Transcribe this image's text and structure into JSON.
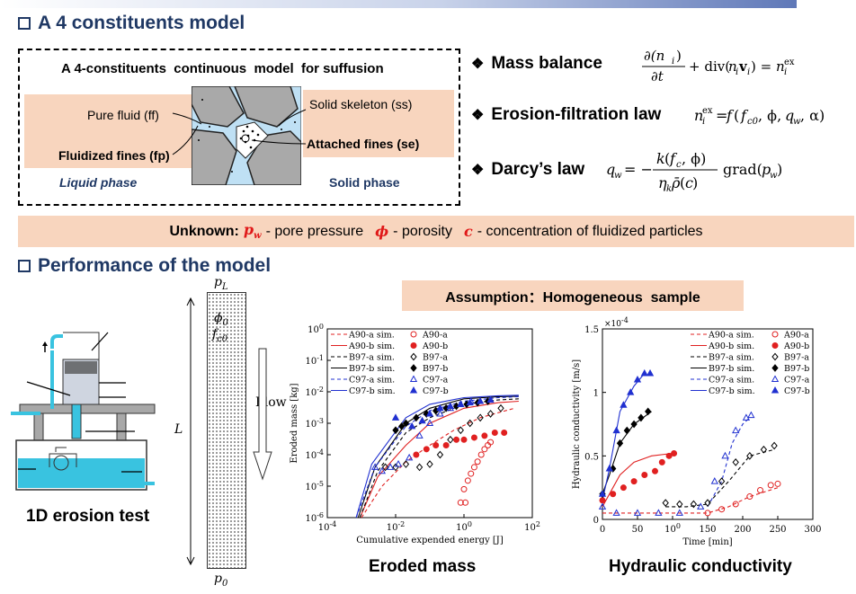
{
  "section1": {
    "title": "A 4 constituents model"
  },
  "model": {
    "heading": "A 4-constituents  continuous  model  for suffusion",
    "pure_fluid": "Pure fluid (ff)",
    "fluidized_fines": "Fluidized fines (fp)",
    "liquid_phase": "Liquid phase",
    "solid_skeleton": "Solid skeleton (ss)",
    "attached_fines": "Attached fines (se)",
    "solid_phase": "Solid phase"
  },
  "equations": [
    {
      "label": "Mass balance"
    },
    {
      "label": "Erosion-filtration law"
    },
    {
      "label": "Darcy’s law"
    }
  ],
  "unknown": {
    "label": "Unknown:",
    "pw_sym": "pw",
    "pw_text": "- pore pressure",
    "phi_sym": "ϕ",
    "phi_text": "- porosity",
    "c_sym": "c",
    "c_text": "- concentration of fluidized particles"
  },
  "section2": {
    "title": "Performance of the model"
  },
  "column": {
    "top": "pL",
    "bottom": "p0",
    "phi": "ϕ0",
    "fc": "fc0",
    "flow": "Flow",
    "length": "L"
  },
  "assumption": "Assumption：Homogeneous  sample",
  "captions": {
    "test": "1D erosion test",
    "eroded": "Eroded mass",
    "hydraulic": "Hydraulic conductivity"
  },
  "chart_data": [
    {
      "type": "scatter",
      "title": "Eroded mass",
      "xlabel": "Cumulative expended energy [J]",
      "ylabel": "Eroded mass [kg]",
      "xscale": "log",
      "yscale": "log",
      "xlim": [
        0.0001,
        100
      ],
      "ylim": [
        1e-06,
        1
      ],
      "xticks": [
        "10-4",
        "10-2",
        "100",
        "102"
      ],
      "yticks": [
        "100",
        "10-1",
        "10-2",
        "10-3",
        "10-4",
        "10-5",
        "10-6"
      ],
      "legend": "top-left",
      "series": [
        {
          "name": "A90-a sim.",
          "color": "#e02020",
          "style": "dashed",
          "points": [
            [
              0.001,
              1e-06
            ],
            [
              0.004,
              1e-05
            ],
            [
              0.02,
              6e-05
            ],
            [
              0.1,
              0.0002
            ],
            [
              0.5,
              0.0006
            ],
            [
              3,
              0.0015
            ],
            [
              30,
              0.003
            ]
          ]
        },
        {
          "name": "A90-b sim.",
          "color": "#e02020",
          "style": "solid",
          "points": [
            [
              0.0009,
              1e-06
            ],
            [
              0.003,
              2e-05
            ],
            [
              0.02,
              0.0002
            ],
            [
              0.1,
              0.001
            ],
            [
              1,
              0.003
            ],
            [
              10,
              0.0045
            ],
            [
              40,
              0.005
            ]
          ]
        },
        {
          "name": "B97-a sim.",
          "color": "#000000",
          "style": "dashed",
          "points": [
            [
              0.0009,
              1e-06
            ],
            [
              0.003,
              3e-05
            ],
            [
              0.02,
              0.0005
            ],
            [
              0.1,
              0.0015
            ],
            [
              1,
              0.004
            ],
            [
              10,
              0.0055
            ],
            [
              40,
              0.006
            ]
          ]
        },
        {
          "name": "B97-b sim.",
          "color": "#000000",
          "style": "solid",
          "points": [
            [
              0.0008,
              1e-06
            ],
            [
              0.0025,
              4e-05
            ],
            [
              0.02,
              0.001
            ],
            [
              0.1,
              0.003
            ],
            [
              1,
              0.006
            ],
            [
              10,
              0.007
            ],
            [
              40,
              0.0072
            ]
          ]
        },
        {
          "name": "C97-a sim.",
          "color": "#2030d0",
          "style": "dashed",
          "points": [
            [
              0.0007,
              1e-06
            ],
            [
              0.0025,
              4e-05
            ],
            [
              0.02,
              0.0008
            ],
            [
              0.1,
              0.0025
            ],
            [
              1,
              0.005
            ],
            [
              10,
              0.0065
            ],
            [
              40,
              0.007
            ]
          ]
        },
        {
          "name": "C97-b sim.",
          "color": "#2030d0",
          "style": "solid",
          "points": [
            [
              0.0007,
              1e-06
            ],
            [
              0.002,
              5e-05
            ],
            [
              0.02,
              0.0015
            ],
            [
              0.1,
              0.004
            ],
            [
              1,
              0.0065
            ],
            [
              10,
              0.0075
            ],
            [
              40,
              0.0078
            ]
          ]
        },
        {
          "name": "A90-a",
          "color": "#e02020",
          "marker": "circle-open",
          "points": [
            [
              0.8,
              3e-06
            ],
            [
              1,
              8e-06
            ],
            [
              1.3,
              1.5e-05
            ],
            [
              1.6,
              2.5e-05
            ],
            [
              2,
              4e-05
            ],
            [
              2.5,
              6e-05
            ],
            [
              3.2,
              0.0001
            ],
            [
              4,
              0.00015
            ],
            [
              5,
              0.0002
            ],
            [
              6,
              0.00025
            ],
            [
              1.1,
              3e-06
            ]
          ]
        },
        {
          "name": "A90-b",
          "color": "#e02020",
          "marker": "circle-filled",
          "points": [
            [
              0.04,
              0.0001
            ],
            [
              0.08,
              0.00015
            ],
            [
              0.15,
              0.0002
            ],
            [
              0.3,
              0.0002
            ],
            [
              0.6,
              0.0003
            ],
            [
              1,
              0.0003
            ],
            [
              2,
              0.00035
            ],
            [
              4,
              0.0004
            ],
            [
              8,
              0.0005
            ],
            [
              15,
              0.0005
            ]
          ]
        },
        {
          "name": "B97-a",
          "color": "#000000",
          "marker": "diamond-open",
          "points": [
            [
              0.005,
              4e-05
            ],
            [
              0.01,
              4e-05
            ],
            [
              0.02,
              5e-05
            ],
            [
              0.05,
              4e-05
            ],
            [
              0.1,
              5e-05
            ],
            [
              0.2,
              0.0001
            ],
            [
              0.4,
              0.0003
            ],
            [
              0.8,
              0.0006
            ],
            [
              1.5,
              0.001
            ],
            [
              3,
              0.0015
            ],
            [
              6,
              0.002
            ],
            [
              12,
              0.003
            ]
          ]
        },
        {
          "name": "B97-b",
          "color": "#000000",
          "marker": "diamond-filled",
          "points": [
            [
              0.01,
              0.0006
            ],
            [
              0.015,
              0.0008
            ],
            [
              0.02,
              0.001
            ],
            [
              0.04,
              0.0015
            ],
            [
              0.08,
              0.002
            ],
            [
              0.15,
              0.0025
            ],
            [
              0.3,
              0.003
            ],
            [
              0.6,
              0.0035
            ],
            [
              1.2,
              0.004
            ],
            [
              2.5,
              0.0045
            ],
            [
              5,
              0.005
            ]
          ]
        },
        {
          "name": "C97-a",
          "color": "#2030d0",
          "marker": "triangle-open",
          "points": [
            [
              0.0025,
              4e-05
            ],
            [
              0.004,
              3e-05
            ],
            [
              0.007,
              4e-05
            ],
            [
              0.012,
              5e-05
            ],
            [
              0.025,
              8e-05
            ],
            [
              0.05,
              0.0004
            ],
            [
              0.1,
              0.001
            ],
            [
              0.2,
              0.002
            ],
            [
              0.4,
              0.003
            ],
            [
              0.8,
              0.004
            ],
            [
              1.6,
              0.005
            ]
          ]
        },
        {
          "name": "C97-b",
          "color": "#2030d0",
          "marker": "triangle-filled",
          "points": [
            [
              0.01,
              0.0015
            ],
            [
              0.03,
              0.0008
            ],
            [
              0.06,
              0.0012
            ],
            [
              0.1,
              0.002
            ],
            [
              0.2,
              0.003
            ],
            [
              0.4,
              0.0035
            ],
            [
              0.8,
              0.004
            ],
            [
              1.5,
              0.0045
            ],
            [
              3,
              0.005
            ],
            [
              6,
              0.0055
            ]
          ]
        }
      ]
    },
    {
      "type": "scatter",
      "title": "Hydraulic conductivity",
      "xlabel": "Time [min]",
      "ylabel": "Hydraulic conductivity [m/s]",
      "xlim": [
        0,
        300
      ],
      "ylim": [
        0,
        1.5
      ],
      "xticks": [
        "0",
        "50",
        "100",
        "150",
        "200",
        "250",
        "300"
      ],
      "yticks": [
        "0",
        "0.5",
        "1",
        "1.5"
      ],
      "y_multiplier": "×10-4",
      "legend": "top-right",
      "series": [
        {
          "name": "A90-a sim.",
          "color": "#e02020",
          "style": "dashed",
          "points": [
            [
              0,
              0.05
            ],
            [
              50,
              0.05
            ],
            [
              100,
              0.05
            ],
            [
              150,
              0.05
            ],
            [
              180,
              0.1
            ],
            [
              210,
              0.18
            ],
            [
              250,
              0.25
            ]
          ]
        },
        {
          "name": "A90-b sim.",
          "color": "#e02020",
          "style": "solid",
          "points": [
            [
              0,
              0.1
            ],
            [
              10,
              0.2
            ],
            [
              25,
              0.35
            ],
            [
              45,
              0.45
            ],
            [
              70,
              0.5
            ],
            [
              100,
              0.52
            ]
          ]
        },
        {
          "name": "B97-a sim.",
          "color": "#000000",
          "style": "dashed",
          "points": [
            [
              90,
              0.1
            ],
            [
              120,
              0.1
            ],
            [
              150,
              0.12
            ],
            [
              180,
              0.3
            ],
            [
              210,
              0.5
            ],
            [
              245,
              0.55
            ]
          ]
        },
        {
          "name": "B97-b sim.",
          "color": "#000000",
          "style": "solid",
          "points": [
            [
              0,
              0.2
            ],
            [
              10,
              0.35
            ],
            [
              25,
              0.6
            ],
            [
              45,
              0.75
            ],
            [
              70,
              0.85
            ]
          ]
        },
        {
          "name": "C97-a sim.",
          "color": "#2030d0",
          "style": "dashed",
          "points": [
            [
              150,
              0.1
            ],
            [
              170,
              0.3
            ],
            [
              185,
              0.6
            ],
            [
              200,
              0.75
            ],
            [
              210,
              0.8
            ]
          ]
        },
        {
          "name": "C97-b sim.",
          "color": "#2030d0",
          "style": "solid",
          "points": [
            [
              0,
              0.15
            ],
            [
              10,
              0.4
            ],
            [
              25,
              0.85
            ],
            [
              45,
              1.05
            ],
            [
              60,
              1.15
            ]
          ]
        },
        {
          "name": "A90-a",
          "color": "#e02020",
          "marker": "circle-open",
          "points": [
            [
              150,
              0.05
            ],
            [
              170,
              0.08
            ],
            [
              190,
              0.12
            ],
            [
              210,
              0.18
            ],
            [
              225,
              0.23
            ],
            [
              240,
              0.27
            ],
            [
              250,
              0.28
            ]
          ]
        },
        {
          "name": "A90-b",
          "color": "#e02020",
          "marker": "circle-filled",
          "points": [
            [
              0,
              0.15
            ],
            [
              15,
              0.2
            ],
            [
              30,
              0.25
            ],
            [
              45,
              0.3
            ],
            [
              60,
              0.35
            ],
            [
              75,
              0.38
            ],
            [
              85,
              0.45
            ],
            [
              95,
              0.5
            ],
            [
              102,
              0.52
            ]
          ]
        },
        {
          "name": "B97-a",
          "color": "#000000",
          "marker": "diamond-open",
          "points": [
            [
              90,
              0.13
            ],
            [
              110,
              0.12
            ],
            [
              130,
              0.12
            ],
            [
              150,
              0.13
            ],
            [
              170,
              0.3
            ],
            [
              190,
              0.45
            ],
            [
              210,
              0.5
            ],
            [
              230,
              0.55
            ],
            [
              245,
              0.58
            ]
          ]
        },
        {
          "name": "B97-b",
          "color": "#000000",
          "marker": "diamond-filled",
          "points": [
            [
              0,
              0.2
            ],
            [
              15,
              0.4
            ],
            [
              25,
              0.6
            ],
            [
              35,
              0.7
            ],
            [
              45,
              0.75
            ],
            [
              55,
              0.8
            ],
            [
              65,
              0.85
            ]
          ]
        },
        {
          "name": "C97-a",
          "color": "#2030d0",
          "marker": "triangle-open",
          "points": [
            [
              0,
              0.1
            ],
            [
              20,
              0.05
            ],
            [
              50,
              0.05
            ],
            [
              80,
              0.05
            ],
            [
              110,
              0.05
            ],
            [
              140,
              0.1
            ],
            [
              160,
              0.3
            ],
            [
              175,
              0.5
            ],
            [
              190,
              0.7
            ],
            [
              205,
              0.8
            ],
            [
              212,
              0.82
            ]
          ]
        },
        {
          "name": "C97-b",
          "color": "#2030d0",
          "marker": "triangle-filled",
          "points": [
            [
              0,
              0.2
            ],
            [
              10,
              0.4
            ],
            [
              20,
              0.7
            ],
            [
              30,
              0.9
            ],
            [
              40,
              1.0
            ],
            [
              50,
              1.1
            ],
            [
              60,
              1.15
            ],
            [
              68,
              1.15
            ]
          ]
        }
      ]
    }
  ]
}
